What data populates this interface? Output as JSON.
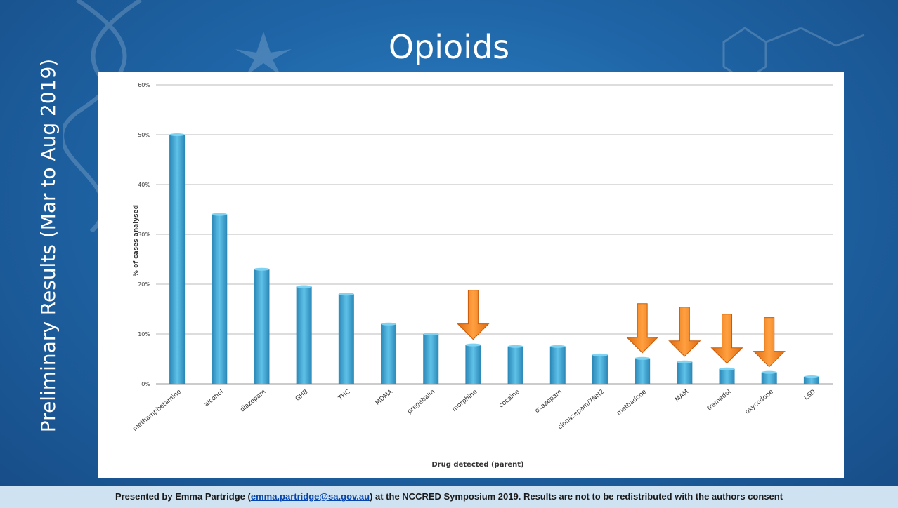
{
  "slide": {
    "title": "Opioids",
    "side_title": "Preliminary Results (Mar to Aug 2019)"
  },
  "footer": {
    "prefix": "Presented by Emma Partridge (",
    "email": "emma.partridge@sa.gov.au",
    "suffix": ") at the NCCRED Symposium 2019. Results are not to be redistributed with the authors consent"
  },
  "colors": {
    "background": "#1f66a8",
    "bar": "#3aa0cf",
    "arrow": "#f07d1a",
    "footer_bg": "#cfe2f1"
  },
  "chart_data": {
    "type": "bar",
    "title": "",
    "xlabel": "Drug detected (parent)",
    "ylabel": "% of cases analysed",
    "ylim": [
      0,
      60
    ],
    "yticks": [
      "0%",
      "10%",
      "20%",
      "30%",
      "40%",
      "50%",
      "60%"
    ],
    "grid": true,
    "categories": [
      "methamphetamine",
      "alcohol",
      "diazepam",
      "GHB",
      "THC",
      "MDMA",
      "pregabalin",
      "morphine",
      "cocaine",
      "oxazepam",
      "clonazepam/7NH2",
      "methadone",
      "MAM",
      "tramadol",
      "oxycodone",
      "LSD"
    ],
    "values": [
      50,
      34,
      23,
      19.5,
      18,
      12,
      10,
      7.8,
      7.5,
      7.5,
      5.8,
      5.1,
      4.4,
      3.0,
      2.3,
      1.4
    ],
    "highlighted": [
      "morphine",
      "methadone",
      "MAM",
      "tramadol",
      "oxycodone"
    ]
  }
}
